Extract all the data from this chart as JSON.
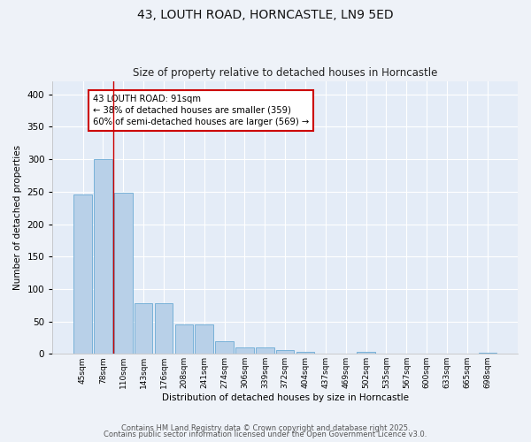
{
  "title1": "43, LOUTH ROAD, HORNCASTLE, LN9 5ED",
  "title2": "Size of property relative to detached houses in Horncastle",
  "xlabel": "Distribution of detached houses by size in Horncastle",
  "ylabel": "Number of detached properties",
  "categories": [
    "45sqm",
    "78sqm",
    "110sqm",
    "143sqm",
    "176sqm",
    "208sqm",
    "241sqm",
    "274sqm",
    "306sqm",
    "339sqm",
    "372sqm",
    "404sqm",
    "437sqm",
    "469sqm",
    "502sqm",
    "535sqm",
    "567sqm",
    "600sqm",
    "633sqm",
    "665sqm",
    "698sqm"
  ],
  "values": [
    245,
    300,
    248,
    78,
    78,
    46,
    46,
    20,
    10,
    10,
    6,
    3,
    0,
    0,
    3,
    0,
    0,
    0,
    0,
    0,
    2
  ],
  "bar_color": "#b8d0e8",
  "bar_edge_color": "#6aaad4",
  "vline_x": 1.5,
  "vline_color": "#cc0000",
  "annotation_text": "43 LOUTH ROAD: 91sqm\n← 38% of detached houses are smaller (359)\n60% of semi-detached houses are larger (569) →",
  "annotation_box_color": "#ffffff",
  "annotation_box_edge_color": "#cc0000",
  "ylim": [
    0,
    420
  ],
  "yticks": [
    0,
    50,
    100,
    150,
    200,
    250,
    300,
    350,
    400
  ],
  "background_color": "#eef2f8",
  "plot_bg_color": "#e4ecf7",
  "footer1": "Contains HM Land Registry data © Crown copyright and database right 2025.",
  "footer2": "Contains public sector information licensed under the Open Government Licence v3.0."
}
